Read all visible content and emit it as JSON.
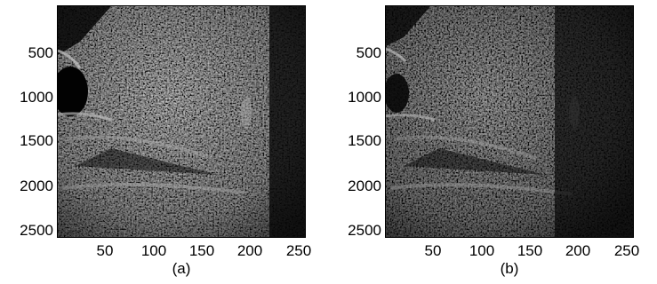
{
  "panels": [
    {
      "caption": "(a)",
      "y_ticks": [
        "500",
        "1000",
        "1500",
        "2000",
        "2500"
      ],
      "x_ticks": [
        "50",
        "100",
        "150",
        "200",
        "250"
      ]
    },
    {
      "caption": "(b)",
      "y_ticks": [
        "500",
        "1000",
        "1500",
        "2000",
        "2500"
      ],
      "x_ticks": [
        "50",
        "100",
        "150",
        "200",
        "250"
      ]
    }
  ],
  "colors": {
    "background": "#ffffff",
    "speckle_dark": "#0e0e0e",
    "speckle_bright": "#d8d8d8"
  }
}
